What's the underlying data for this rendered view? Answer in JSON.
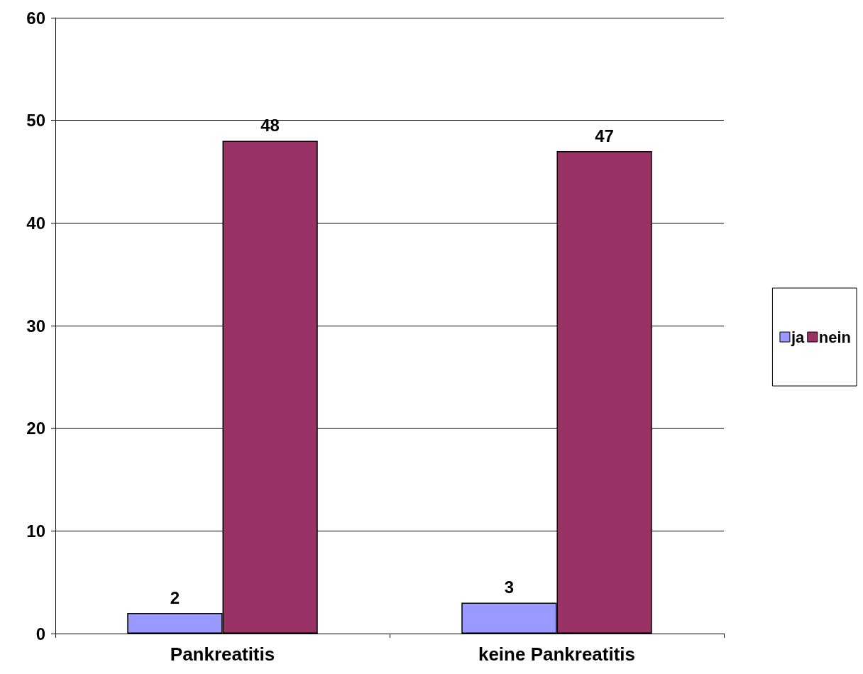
{
  "chart_data": {
    "type": "bar",
    "categories": [
      "Pankreatitis",
      "keine Pankreatitis"
    ],
    "series": [
      {
        "name": "ja",
        "color": "#9999ff",
        "values": [
          2,
          3
        ]
      },
      {
        "name": "nein",
        "color": "#993366",
        "values": [
          48,
          47
        ]
      }
    ],
    "ylim": [
      0,
      60
    ],
    "yticks": [
      0,
      10,
      20,
      30,
      40,
      50,
      60
    ],
    "grid": "y",
    "legend": "right",
    "data_labels": true
  }
}
